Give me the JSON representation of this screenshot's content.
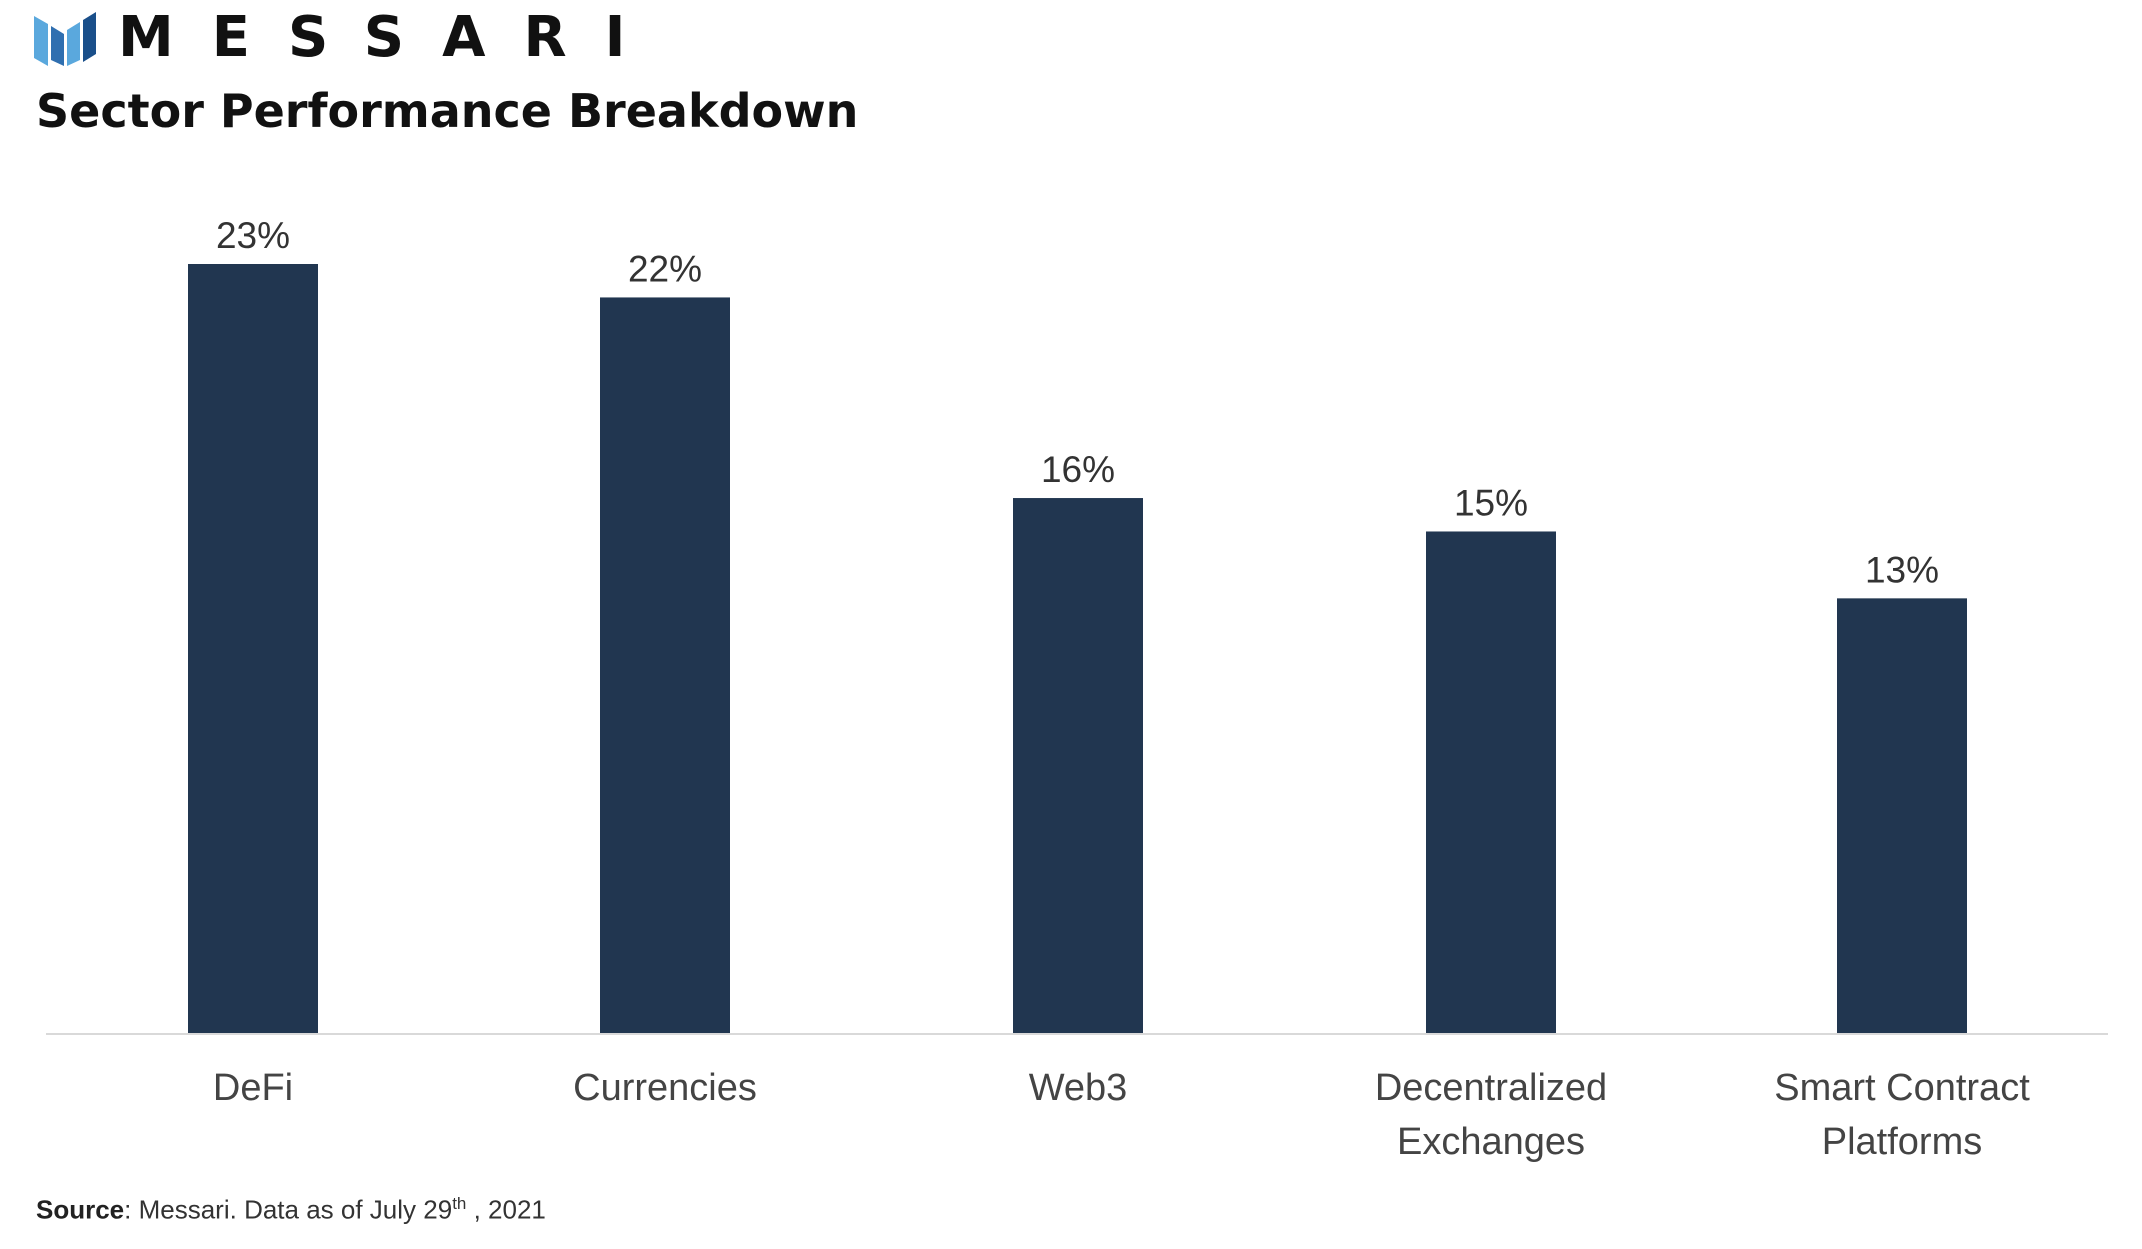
{
  "brand": {
    "name": "MESSARI",
    "logo_icon": "messari-m-icon",
    "colors": {
      "dark": "#1a4f8a",
      "light": "#5aa8dd"
    }
  },
  "title": "Sector Performance Breakdown",
  "source": {
    "label": "Source",
    "text": ": Messari. Data as of July 29",
    "sup": "th",
    "text_after": " , 2021"
  },
  "chart_data": {
    "type": "bar",
    "title": "Sector Performance Breakdown",
    "categories": [
      [
        "DeFi"
      ],
      [
        "Currencies"
      ],
      [
        "Web3"
      ],
      [
        "Decentralized",
        "Exchanges"
      ],
      [
        "Smart Contract",
        "Platforms"
      ]
    ],
    "values": [
      23,
      22,
      16,
      15,
      13
    ],
    "data_labels": [
      "23%",
      "22%",
      "16%",
      "15%",
      "13%"
    ],
    "unit": "%",
    "xlabel": "",
    "ylabel": "",
    "ylim": [
      0,
      23
    ],
    "grid": false,
    "legend": "none",
    "bar_color": "#213650",
    "axis_color": "#d9d9d9"
  }
}
